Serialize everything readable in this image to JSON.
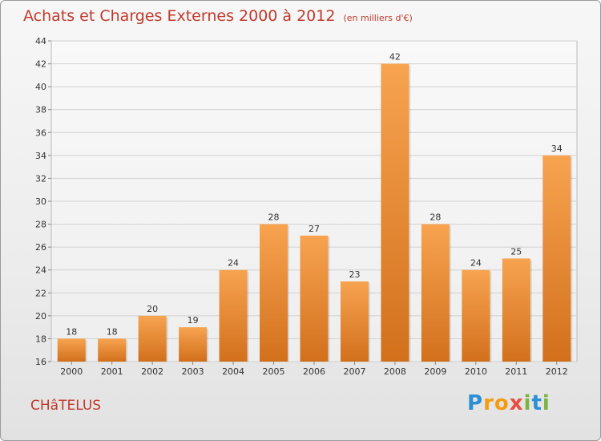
{
  "title": "Achats et Charges Externes 2000 à 2012",
  "subtitle": "(en milliers d'€)",
  "city": "CHâTELUS",
  "logo": {
    "letters": [
      "P",
      "r",
      "o",
      "x",
      "i",
      "t",
      "i"
    ],
    "colors": [
      "#2b8fd6",
      "#f39c12",
      "#f39c12",
      "#e74c3c",
      "#7cb342",
      "#2b8fd6",
      "#7cb342"
    ]
  },
  "chart_data": {
    "type": "bar",
    "title": "Achats et Charges Externes 2000 à 2012",
    "subtitle": "(en milliers d'€)",
    "categories": [
      "2000",
      "2001",
      "2002",
      "2003",
      "2004",
      "2005",
      "2006",
      "2007",
      "2008",
      "2009",
      "2010",
      "2011",
      "2012"
    ],
    "values": [
      18,
      18,
      20,
      19,
      24,
      28,
      27,
      23,
      42,
      28,
      24,
      25,
      34
    ],
    "xlabel": "",
    "ylabel": "",
    "ylim": [
      16,
      44
    ],
    "yticks": [
      16,
      18,
      20,
      22,
      24,
      26,
      28,
      30,
      32,
      34,
      36,
      38,
      40,
      42,
      44
    ],
    "grid": true,
    "bar_color_top": "#f7a350",
    "bar_color_bottom": "#d2701c"
  }
}
